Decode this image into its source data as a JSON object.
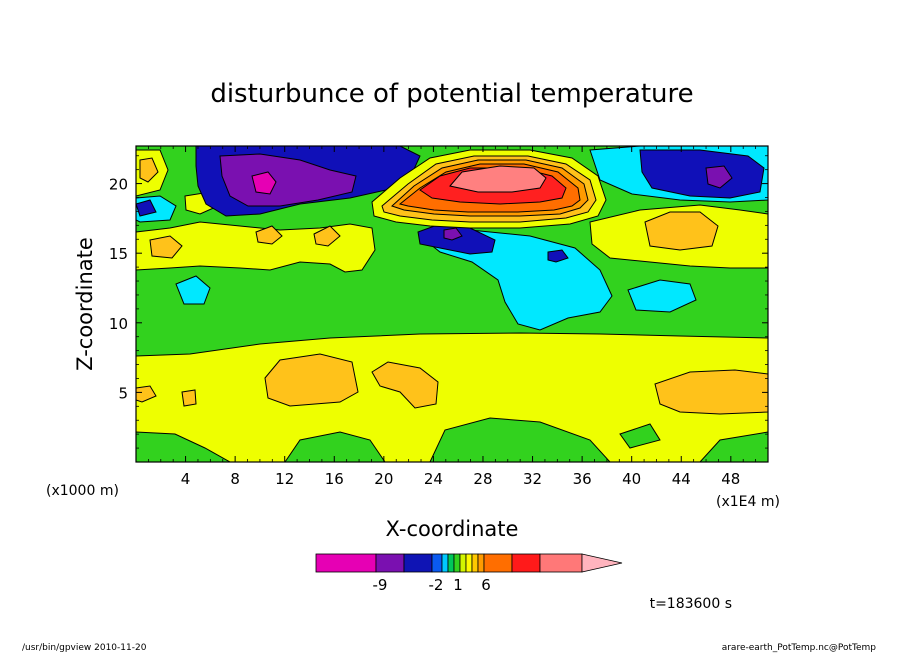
{
  "chart_data": {
    "type": "heatmap",
    "title": "disturbunce of potential temperature",
    "xlabel": "X-coordinate",
    "ylabel": "Z-coordinate",
    "x_unit_left": "(x1000 m)",
    "x_unit_right": "(x1E4 m)",
    "xlim": [
      0,
      51
    ],
    "ylim": [
      0,
      22.7
    ],
    "x_ticks": [
      "4",
      "8",
      "12",
      "16",
      "20",
      "24",
      "28",
      "32",
      "36",
      "40",
      "44",
      "48"
    ],
    "y_ticks": [
      "5",
      "10",
      "15",
      "20"
    ],
    "grid": false,
    "colorbar": {
      "labels": [
        "-9",
        "-2",
        "1",
        "6"
      ],
      "colors": [
        "#e600b4",
        "#7a10b0",
        "#0f14b4",
        "#0a5af0",
        "#00c8ff",
        "#00c85a",
        "#32d21e",
        "#d2f500",
        "#fffa00",
        "#ffc800",
        "#ff9b00",
        "#ff6e00",
        "#ff1a1a",
        "#ff7878",
        "#ffb4be"
      ]
    },
    "regions": [
      {
        "level": "green",
        "color": "#32d21e"
      },
      {
        "level": "yellow",
        "color": "#eeff00"
      },
      {
        "level": "orange",
        "color": "#ffc21a"
      },
      {
        "level": "cyan",
        "color": "#00e8ff"
      },
      {
        "level": "blue",
        "color": "#1010b8"
      },
      {
        "level": "purple",
        "color": "#7a10b0"
      },
      {
        "level": "magenta",
        "color": "#e600b4"
      },
      {
        "level": "warm-orange",
        "color": "#ff6e00"
      },
      {
        "level": "red",
        "color": "#ff2020"
      },
      {
        "level": "pink",
        "color": "#ff8080"
      }
    ],
    "time_label": "t=183600 s"
  },
  "footer": {
    "left": "/usr/bin/gpview  2010-11-20",
    "right": "arare-earth_PotTemp.nc@PotTemp"
  }
}
